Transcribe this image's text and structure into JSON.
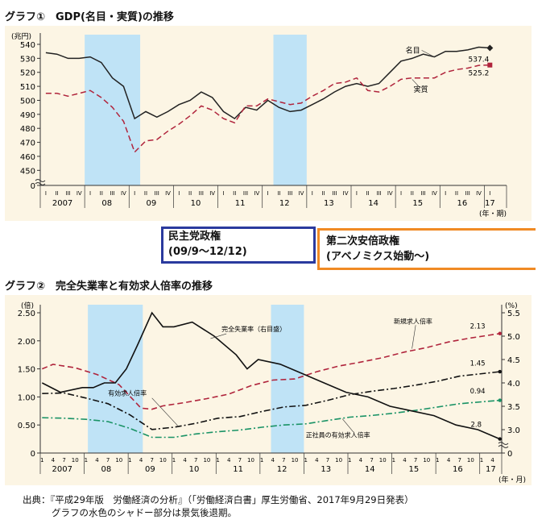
{
  "chart1": {
    "title": "グラフ①　GDP(名目・実質)の推移",
    "yunit": "(兆円)",
    "xunit": "(年・期)",
    "yticks": [
      540,
      530,
      520,
      510,
      500,
      490,
      480,
      470,
      460,
      450,
      0
    ],
    "years": [
      "2007",
      "08",
      "09",
      "10",
      "11",
      "12",
      "13",
      "14",
      "15",
      "16",
      "17"
    ],
    "quarters": [
      "I",
      "II",
      "III",
      "IV"
    ],
    "nominal_label": "名目",
    "real_label": "実質",
    "nominal_end": "537.4",
    "real_end": "525.2"
  },
  "chart2": {
    "title": "グラフ②　完全失業率と有効求人倍率の推移",
    "yunit_left": "(倍)",
    "yunit_right": "(%)",
    "xunit": "(年・月)",
    "left_ticks": [
      "2.50",
      "2.00",
      "1.50",
      "1.00",
      "0.50",
      "0"
    ],
    "right_ticks": [
      "5.5",
      "5.0",
      "4.5",
      "4.0",
      "3.5",
      "3.0",
      "0"
    ],
    "years": [
      "2007",
      "08",
      "09",
      "10",
      "11",
      "12",
      "13",
      "14",
      "15",
      "16",
      "17"
    ],
    "months": [
      "1",
      "4",
      "7",
      "10"
    ],
    "label_unemp": "完全失業率（右目盛）",
    "label_new": "新規求人倍率",
    "label_eff": "有効求人倍率",
    "label_regular": "正社員の有効求人倍率",
    "val_new": "2.13",
    "val_eff": "1.45",
    "val_regular": "0.94",
    "val_unemp": "2.8"
  },
  "boxes": {
    "dem_line1": "民主党政権",
    "dem_line2": "(09/9～12/12)",
    "abe_line1": "第二次安倍政権",
    "abe_line2": "(アベノミクス始動～)"
  },
  "source": {
    "line1": "出典：『平成29年版　労働経済の分析』（「労働経済白書」厚生労働省、2017年9月29日発表）",
    "line2": "グラフの水色のシャドー部分は景気後退期。"
  },
  "chart_data": [
    {
      "type": "line",
      "title": "GDP(名目・実質)の推移",
      "ylabel": "(兆円)",
      "xlabel": "(年・期)",
      "ylim": [
        445,
        540
      ],
      "categories": [
        "2007Q1",
        "2007Q2",
        "2007Q3",
        "2007Q4",
        "2008Q1",
        "2008Q2",
        "2008Q3",
        "2008Q4",
        "2009Q1",
        "2009Q2",
        "2009Q3",
        "2009Q4",
        "2010Q1",
        "2010Q2",
        "2010Q3",
        "2010Q4",
        "2011Q1",
        "2011Q2",
        "2011Q3",
        "2011Q4",
        "2012Q1",
        "2012Q2",
        "2012Q3",
        "2012Q4",
        "2013Q1",
        "2013Q2",
        "2013Q3",
        "2013Q4",
        "2014Q1",
        "2014Q2",
        "2014Q3",
        "2014Q4",
        "2015Q1",
        "2015Q2",
        "2015Q3",
        "2015Q4",
        "2016Q1",
        "2016Q2",
        "2016Q3",
        "2016Q4",
        "2017Q1"
      ],
      "series": [
        {
          "name": "名目",
          "color": "#222222",
          "style": "solid",
          "values": [
            534,
            533,
            530,
            530,
            531,
            527,
            516,
            510,
            487,
            492,
            488,
            492,
            497,
            500,
            506,
            502,
            492,
            487,
            495,
            493,
            500,
            495,
            492,
            493,
            497,
            501,
            506,
            510,
            512,
            510,
            512,
            520,
            528,
            530,
            533,
            531,
            535,
            535,
            536,
            538,
            537.4
          ]
        },
        {
          "name": "実質",
          "color": "#b0243c",
          "style": "dashed",
          "values": [
            505,
            505,
            503,
            505,
            507,
            502,
            495,
            485,
            463,
            471,
            472,
            478,
            483,
            489,
            496,
            493,
            487,
            484,
            496,
            496,
            501,
            499,
            497,
            498,
            503,
            507,
            512,
            513,
            516,
            507,
            506,
            510,
            515,
            516,
            516,
            516,
            520,
            522,
            523,
            525,
            525.2
          ]
        }
      ],
      "shaded_periods": [
        [
          "2008Q1",
          "2009Q1"
        ],
        [
          "2012Q2",
          "2012Q4"
        ]
      ]
    },
    {
      "type": "line",
      "title": "完全失業率と有効求人倍率の推移",
      "ylabel_left": "(倍)",
      "ylabel_right": "(%)",
      "xlabel": "(年・月)",
      "ylim_left": [
        0,
        2.5
      ],
      "ylim_right": [
        0,
        5.5
      ],
      "x_start": "2007-01",
      "x_end": "2017-06",
      "series": [
        {
          "name": "新規求人倍率",
          "axis": "left",
          "color": "#b0243c",
          "style": "dashed",
          "points": [
            [
              "2007-01",
              1.5
            ],
            [
              "2007-04",
              1.58
            ],
            [
              "2007-10",
              1.52
            ],
            [
              "2008-04",
              1.4
            ],
            [
              "2008-10",
              1.22
            ],
            [
              "2009-04",
              0.8
            ],
            [
              "2009-07",
              0.78
            ],
            [
              "2009-10",
              0.84
            ],
            [
              "2010-04",
              0.9
            ],
            [
              "2010-10",
              0.97
            ],
            [
              "2011-04",
              1.05
            ],
            [
              "2011-10",
              1.2
            ],
            [
              "2012-04",
              1.3
            ],
            [
              "2012-10",
              1.32
            ],
            [
              "2013-04",
              1.45
            ],
            [
              "2013-10",
              1.55
            ],
            [
              "2014-04",
              1.62
            ],
            [
              "2014-10",
              1.7
            ],
            [
              "2015-04",
              1.8
            ],
            [
              "2015-10",
              1.88
            ],
            [
              "2016-04",
              1.98
            ],
            [
              "2016-10",
              2.05
            ],
            [
              "2017-06",
              2.13
            ]
          ]
        },
        {
          "name": "有効求人倍率",
          "axis": "left",
          "color": "#111111",
          "style": "dashdot",
          "points": [
            [
              "2007-01",
              1.06
            ],
            [
              "2007-07",
              1.07
            ],
            [
              "2008-01",
              0.98
            ],
            [
              "2008-07",
              0.88
            ],
            [
              "2009-01",
              0.68
            ],
            [
              "2009-07",
              0.42
            ],
            [
              "2010-01",
              0.46
            ],
            [
              "2010-07",
              0.53
            ],
            [
              "2011-01",
              0.62
            ],
            [
              "2011-07",
              0.65
            ],
            [
              "2012-01",
              0.74
            ],
            [
              "2012-07",
              0.82
            ],
            [
              "2013-01",
              0.85
            ],
            [
              "2013-07",
              0.94
            ],
            [
              "2014-01",
              1.04
            ],
            [
              "2014-07",
              1.1
            ],
            [
              "2015-01",
              1.15
            ],
            [
              "2015-07",
              1.21
            ],
            [
              "2016-01",
              1.28
            ],
            [
              "2016-07",
              1.37
            ],
            [
              "2017-06",
              1.45
            ]
          ]
        },
        {
          "name": "正社員の有効求人倍率",
          "axis": "left",
          "color": "#1a9366",
          "style": "dashdot",
          "points": [
            [
              "2007-01",
              0.63
            ],
            [
              "2007-07",
              0.62
            ],
            [
              "2008-01",
              0.6
            ],
            [
              "2008-07",
              0.56
            ],
            [
              "2009-01",
              0.44
            ],
            [
              "2009-07",
              0.28
            ],
            [
              "2010-01",
              0.28
            ],
            [
              "2010-07",
              0.34
            ],
            [
              "2011-01",
              0.38
            ],
            [
              "2011-07",
              0.41
            ],
            [
              "2012-01",
              0.46
            ],
            [
              "2012-07",
              0.5
            ],
            [
              "2013-01",
              0.52
            ],
            [
              "2013-07",
              0.58
            ],
            [
              "2014-01",
              0.64
            ],
            [
              "2014-07",
              0.67
            ],
            [
              "2015-01",
              0.71
            ],
            [
              "2015-07",
              0.76
            ],
            [
              "2016-01",
              0.82
            ],
            [
              "2016-07",
              0.88
            ],
            [
              "2017-06",
              0.94
            ]
          ]
        },
        {
          "name": "完全失業率（右目盛）",
          "axis": "right",
          "color": "#111111",
          "style": "solid",
          "points": [
            [
              "2007-01",
              4.0
            ],
            [
              "2007-06",
              3.8
            ],
            [
              "2007-12",
              3.9
            ],
            [
              "2008-03",
              3.9
            ],
            [
              "2008-06",
              4.0
            ],
            [
              "2008-09",
              4.0
            ],
            [
              "2008-12",
              4.3
            ],
            [
              "2009-03",
              4.8
            ],
            [
              "2009-07",
              5.5
            ],
            [
              "2009-10",
              5.2
            ],
            [
              "2010-01",
              5.2
            ],
            [
              "2010-06",
              5.3
            ],
            [
              "2010-12",
              5.0
            ],
            [
              "2011-06",
              4.6
            ],
            [
              "2011-09",
              4.3
            ],
            [
              "2011-12",
              4.5
            ],
            [
              "2012-06",
              4.4
            ],
            [
              "2012-12",
              4.2
            ],
            [
              "2013-06",
              4.0
            ],
            [
              "2013-12",
              3.8
            ],
            [
              "2014-06",
              3.7
            ],
            [
              "2014-12",
              3.5
            ],
            [
              "2015-06",
              3.4
            ],
            [
              "2015-12",
              3.3
            ],
            [
              "2016-06",
              3.1
            ],
            [
              "2016-12",
              3.0
            ],
            [
              "2017-06",
              2.8
            ]
          ]
        }
      ],
      "shaded_periods": [
        [
          "2008-02",
          "2009-04"
        ],
        [
          "2012-04",
          "2012-12"
        ]
      ]
    }
  ]
}
